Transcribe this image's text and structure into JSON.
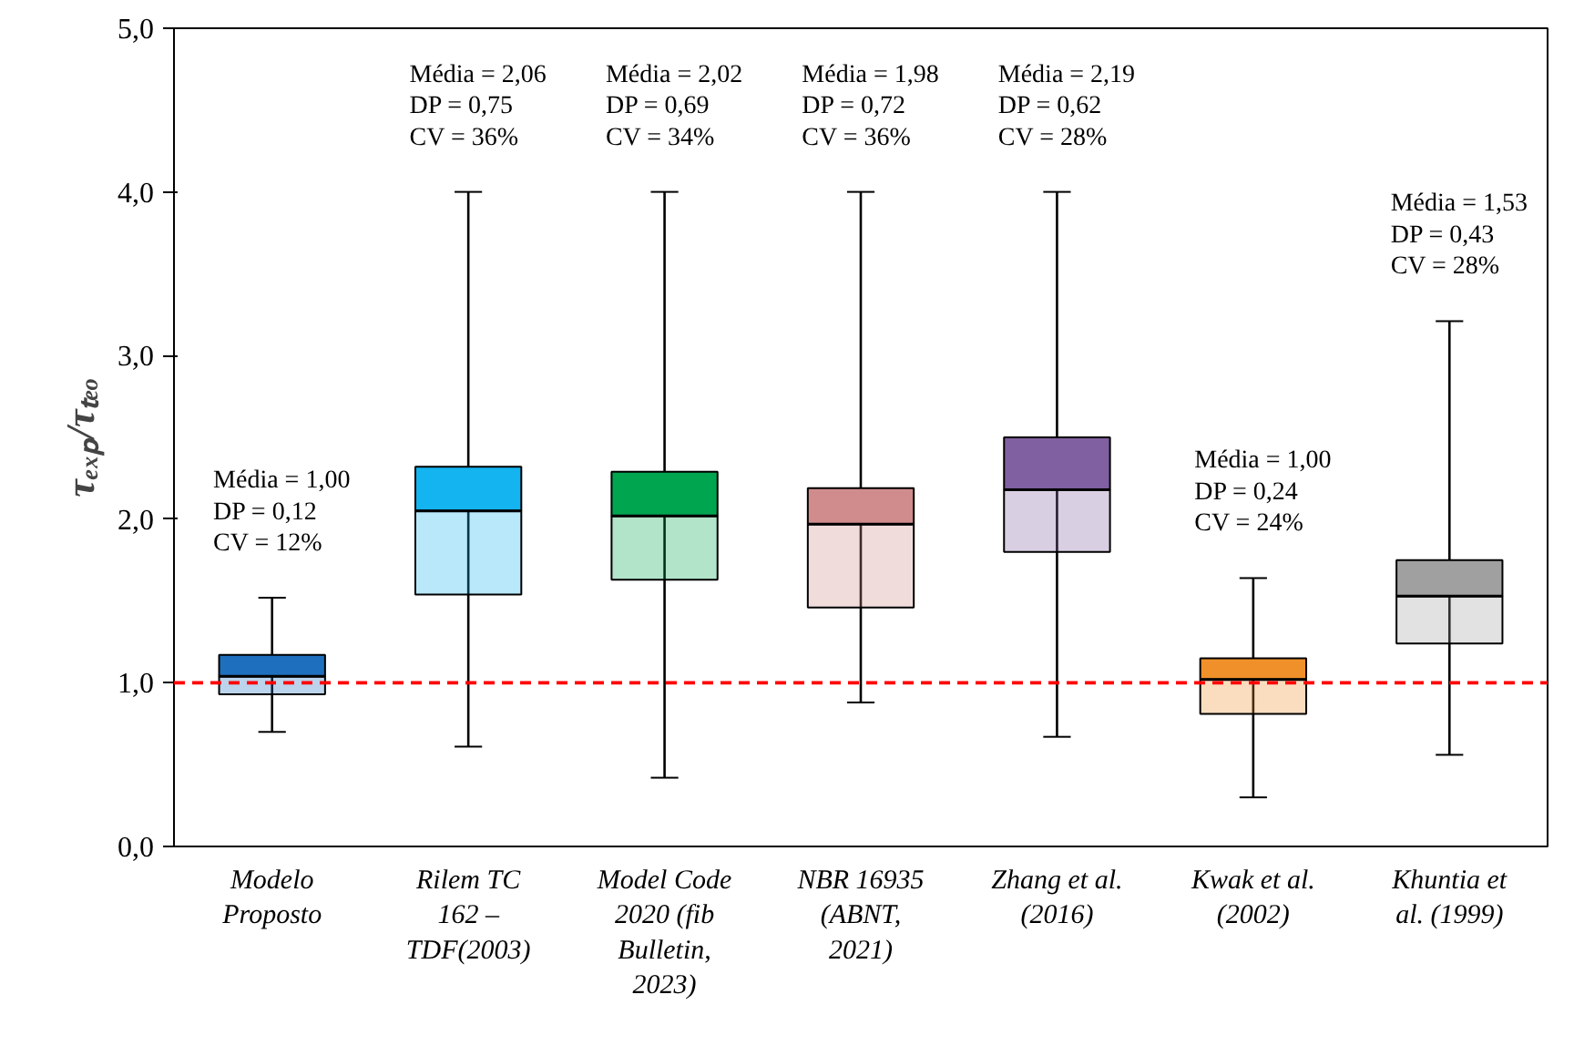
{
  "chart_data": {
    "type": "box",
    "ylabel": "τₑₓₚ/τₜₑₒ",
    "categories": [
      "Modelo\nProposto",
      "Rilem TC\n162 –\nTDF(2003)",
      "Model Code\n2020 (fib\nBulletin,\n2023)",
      "NBR 16935\n(ABNT,\n2021)",
      "Zhang et al.\n(2016)",
      "Kwak et al.\n(2002)",
      "Khuntia et\nal. (1999)"
    ],
    "colors": [
      "#1f6fbf",
      "#14b4f0",
      "#00a550",
      "#d08c8c",
      "#8060a0",
      "#f0902a",
      "#a0a0a0"
    ],
    "boxes": [
      {
        "low": 0.7,
        "q1": 0.93,
        "median": 1.04,
        "q3": 1.17,
        "high": 1.52
      },
      {
        "low": 0.61,
        "q1": 1.54,
        "median": 2.05,
        "q3": 2.32,
        "high": 4.0
      },
      {
        "low": 0.42,
        "q1": 1.63,
        "median": 2.02,
        "q3": 2.29,
        "high": 4.0
      },
      {
        "low": 0.88,
        "q1": 1.46,
        "median": 1.97,
        "q3": 2.19,
        "high": 4.0
      },
      {
        "low": 0.67,
        "q1": 1.8,
        "median": 2.18,
        "q3": 2.5,
        "high": 4.0
      },
      {
        "low": 0.3,
        "q1": 0.81,
        "median": 1.02,
        "q3": 1.15,
        "high": 1.64
      },
      {
        "low": 0.56,
        "q1": 1.24,
        "median": 1.53,
        "q3": 1.75,
        "high": 3.21
      }
    ],
    "ylim": [
      0,
      5
    ],
    "yticks": [
      {
        "value": 0,
        "label": "0,0"
      },
      {
        "value": 1,
        "label": "1,0"
      },
      {
        "value": 2,
        "label": "2,0"
      },
      {
        "value": 3,
        "label": "3,0"
      },
      {
        "value": 4,
        "label": "4,0"
      },
      {
        "value": 5,
        "label": "5,0"
      }
    ],
    "ref_lines": [
      {
        "axis": "y",
        "value": 1,
        "color": "#ff0000",
        "line_style": "dashed"
      }
    ],
    "annotations": [
      "Média = 1,00\nDP = 0,12\nCV = 12%",
      "Média = 2,06\nDP = 0,75\nCV = 36%",
      "Média = 2,02\nDP = 0,69\nCV = 34%",
      "Média = 1,98\nDP = 0,72\nCV = 36%",
      "Média = 2,19\nDP = 0,62\nCV = 28%",
      "Média = 1,00\nDP = 0,24\nCV = 24%",
      "Média = 1,53\nDP = 0,43\nCV = 28%"
    ],
    "grid": false
  }
}
